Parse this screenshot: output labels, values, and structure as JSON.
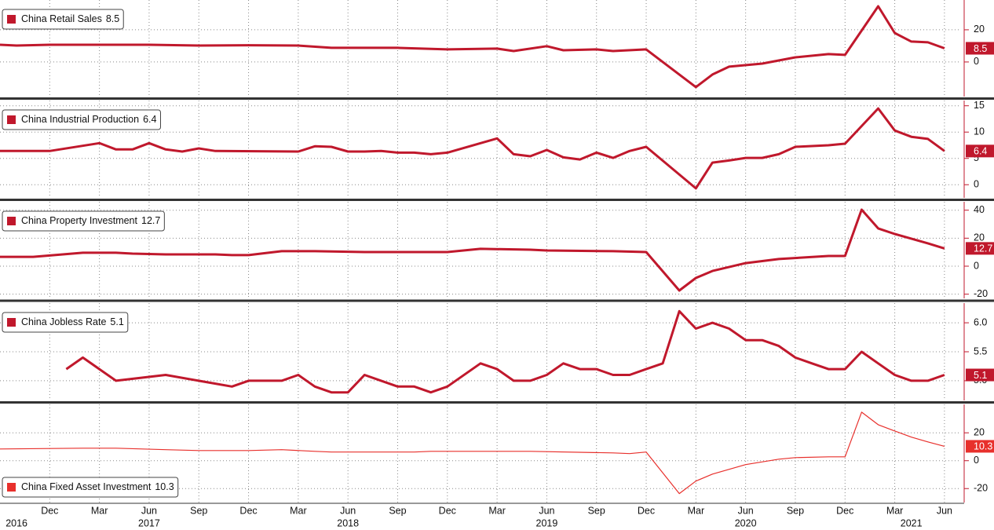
{
  "chart_data": [
    {
      "type": "line",
      "legend": "upper left",
      "xlim": [
        "2016-09",
        "2021-07"
      ],
      "ylim": [
        -21.5,
        38.5
      ],
      "yticks": [
        0,
        20
      ],
      "x": [
        "2016-09",
        "2016-10",
        "2016-12",
        "2017-06",
        "2017-09",
        "2017-12",
        "2018-03",
        "2018-05",
        "2018-09",
        "2018-12",
        "2019-03",
        "2019-04",
        "2019-06",
        "2019-07",
        "2019-09",
        "2019-10",
        "2019-12",
        "2020-03",
        "2020-04",
        "2020-05",
        "2020-07",
        "2020-09",
        "2020-11",
        "2020-12",
        "2021-02",
        "2021-03",
        "2021-04",
        "2021-05",
        "2021-06"
      ],
      "series": [
        {
          "name": "China Retail Sales",
          "color": "#c0182c",
          "linewidth": 3,
          "values": [
            10.7,
            10.2,
            10.7,
            10.7,
            10.2,
            10.4,
            10.2,
            8.8,
            8.8,
            7.8,
            8.3,
            6.8,
            9.8,
            7.3,
            7.8,
            6.8,
            7.8,
            -15.6,
            -7.8,
            -2.9,
            -1.0,
            2.9,
            4.9,
            4.4,
            34.6,
            18,
            12.7,
            12.2,
            8.5
          ]
        }
      ]
    },
    {
      "type": "line",
      "legend": "upper left",
      "xlim": [
        "2016-09",
        "2021-07"
      ],
      "ylim": [
        -2.5,
        16
      ],
      "yticks": [
        0,
        5,
        10,
        15
      ],
      "x": [
        "2016-09",
        "2016-12",
        "2017-03",
        "2017-04",
        "2017-05",
        "2017-06",
        "2017-07",
        "2017-08",
        "2017-09",
        "2017-10",
        "2018-03",
        "2018-04",
        "2018-05",
        "2018-06",
        "2018-07",
        "2018-08",
        "2018-09",
        "2018-10",
        "2018-11",
        "2018-12",
        "2019-03",
        "2019-04",
        "2019-05",
        "2019-06",
        "2019-07",
        "2019-08",
        "2019-09",
        "2019-10",
        "2019-11",
        "2019-12",
        "2020-03",
        "2020-04",
        "2020-05",
        "2020-06",
        "2020-07",
        "2020-08",
        "2020-09",
        "2020-11",
        "2020-12",
        "2021-02",
        "2021-03",
        "2021-04",
        "2021-05",
        "2021-06"
      ],
      "series": [
        {
          "name": "China Industrial Production",
          "color": "#c0182c",
          "linewidth": 3,
          "values": [
            6.4,
            6.4,
            7.9,
            6.7,
            6.7,
            7.9,
            6.7,
            6.3,
            6.9,
            6.4,
            6.3,
            7.3,
            7.2,
            6.3,
            6.3,
            6.4,
            6.1,
            6.1,
            5.8,
            6.1,
            8.8,
            5.8,
            5.4,
            6.6,
            5.2,
            4.8,
            6.1,
            5.1,
            6.4,
            7.2,
            -0.7,
            4.2,
            4.6,
            5.1,
            5.1,
            5.8,
            7.2,
            7.5,
            7.8,
            14.5,
            10.3,
            9.1,
            8.7,
            6.4
          ]
        }
      ]
    },
    {
      "type": "line",
      "legend": "upper left",
      "xlim": [
        "2016-09",
        "2021-07"
      ],
      "ylim": [
        -23,
        46
      ],
      "yticks": [
        -20,
        0,
        20,
        40
      ],
      "x": [
        "2016-09",
        "2016-11",
        "2017-02",
        "2017-04",
        "2017-05",
        "2017-07",
        "2017-10",
        "2017-11",
        "2017-12",
        "2018-02",
        "2018-04",
        "2018-07",
        "2018-12",
        "2019-02",
        "2019-05",
        "2019-06",
        "2019-10",
        "2019-12",
        "2020-02",
        "2020-03",
        "2020-04",
        "2020-06",
        "2020-08",
        "2020-11",
        "2020-12",
        "2021-01",
        "2021-02",
        "2021-03",
        "2021-05",
        "2021-06"
      ],
      "series": [
        {
          "name": "China Property Investment",
          "color": "#c0182c",
          "linewidth": 3,
          "values": [
            6.7,
            6.7,
            9.6,
            9.6,
            9.0,
            8.4,
            8.4,
            7.9,
            7.9,
            10.7,
            10.7,
            10.1,
            10.1,
            12.4,
            11.8,
            11.2,
            10.7,
            10.1,
            -17.4,
            -8.4,
            -3.4,
            2.2,
            5.1,
            7.3,
            7.3,
            40.4,
            27,
            23,
            16.3,
            12.7
          ]
        }
      ]
    },
    {
      "type": "line",
      "legend": "upper left",
      "xlim": [
        "2016-09",
        "2021-07"
      ],
      "ylim": [
        4.66,
        6.34
      ],
      "yticks": [
        {
          "value": 5,
          "label": "5.0"
        },
        5.5,
        {
          "value": 6,
          "label": "6.0"
        }
      ],
      "x": [
        "2017-01",
        "2017-02",
        "2017-04",
        "2017-07",
        "2017-11",
        "2017-12",
        "2018-02",
        "2018-03",
        "2018-04",
        "2018-05",
        "2018-06",
        "2018-07",
        "2018-08",
        "2018-09",
        "2018-10",
        "2018-11",
        "2018-12",
        "2019-02",
        "2019-03",
        "2019-04",
        "2019-05",
        "2019-06",
        "2019-07",
        "2019-08",
        "2019-09",
        "2019-10",
        "2019-11",
        "2019-12",
        "2020-01",
        "2020-02",
        "2020-03",
        "2020-04",
        "2020-05",
        "2020-06",
        "2020-07",
        "2020-08",
        "2020-09",
        "2020-10",
        "2020-11",
        "2020-12",
        "2021-01",
        "2021-02",
        "2021-03",
        "2021-04",
        "2021-05",
        "2021-06"
      ],
      "series": [
        {
          "name": "China Jobless Rate",
          "color": "#c0182c",
          "linewidth": 3,
          "values": [
            5.2,
            5.4,
            5.0,
            5.1,
            4.9,
            5.0,
            5.0,
            5.1,
            4.9,
            4.8,
            4.8,
            5.1,
            5.0,
            4.9,
            4.9,
            4.8,
            4.9,
            5.3,
            5.2,
            5.0,
            5.0,
            5.1,
            5.3,
            5.2,
            5.2,
            5.1,
            5.1,
            5.2,
            5.3,
            6.2,
            5.9,
            6.0,
            5.9,
            5.7,
            5.7,
            5.6,
            5.4,
            5.3,
            5.2,
            5.2,
            5.5,
            5.3,
            5.1,
            5.0,
            5.0,
            5.1
          ]
        }
      ]
    },
    {
      "type": "line",
      "legend": "lower left",
      "xlim": [
        "2016-09",
        "2021-07"
      ],
      "ylim": [
        -30,
        40.4
      ],
      "yticks": [
        -20,
        0,
        20
      ],
      "x": [
        "2016-09",
        "2017-02",
        "2017-04",
        "2017-07",
        "2017-09",
        "2017-12",
        "2018-02",
        "2018-04",
        "2018-05",
        "2018-10",
        "2018-11",
        "2019-05",
        "2019-10",
        "2019-11",
        "2019-12",
        "2020-02",
        "2020-03",
        "2020-04",
        "2020-06",
        "2020-08",
        "2020-09",
        "2020-11",
        "2020-12",
        "2021-01",
        "2021-02",
        "2021-03",
        "2021-04",
        "2021-05",
        "2021-06"
      ],
      "series": [
        {
          "name": "China Fixed Asset Investment",
          "color": "#e8302c",
          "linewidth": 1.2,
          "values": [
            8.4,
            9.0,
            9.0,
            7.9,
            7.3,
            7.3,
            7.9,
            6.7,
            6.2,
            6.2,
            6.7,
            6.7,
            5.6,
            5.1,
            6.2,
            -23.6,
            -14.6,
            -9.6,
            -2.8,
            1.1,
            2.2,
            2.8,
            2.8,
            34.8,
            25.8,
            21.3,
            16.9,
            13.5,
            10.3
          ]
        }
      ],
      "xticks": [
        {
          "value": "2016-12",
          "label": "Dec"
        },
        {
          "value": "2017-03",
          "label": "Mar"
        },
        {
          "value": "2017-06",
          "label": "Jun"
        },
        {
          "value": "2017-09",
          "label": "Sep"
        },
        {
          "value": "2017-12",
          "label": "Dec"
        },
        {
          "value": "2018-03",
          "label": "Mar"
        },
        {
          "value": "2018-06",
          "label": "Jun"
        },
        {
          "value": "2018-09",
          "label": "Sep"
        },
        {
          "value": "2018-12",
          "label": "Dec"
        },
        {
          "value": "2019-03",
          "label": "Mar"
        },
        {
          "value": "2019-06",
          "label": "Jun"
        },
        {
          "value": "2019-09",
          "label": "Sep"
        },
        {
          "value": "2019-12",
          "label": "Dec"
        },
        {
          "value": "2020-03",
          "label": "Mar"
        },
        {
          "value": "2020-06",
          "label": "Jun"
        },
        {
          "value": "2020-09",
          "label": "Sep"
        },
        {
          "value": "2020-12",
          "label": "Dec"
        },
        {
          "value": "2021-03",
          "label": "Mar"
        },
        {
          "value": "2021-06",
          "label": "Jun"
        }
      ],
      "year_labels": [
        {
          "value": "2016-10",
          "label": "2016"
        },
        {
          "value": "2017-06",
          "label": "2017"
        },
        {
          "value": "2018-06",
          "label": "2018"
        },
        {
          "value": "2019-06",
          "label": "2019"
        },
        {
          "value": "2020-06",
          "label": "2020"
        },
        {
          "value": "2021-04",
          "label": "2021"
        }
      ]
    }
  ]
}
